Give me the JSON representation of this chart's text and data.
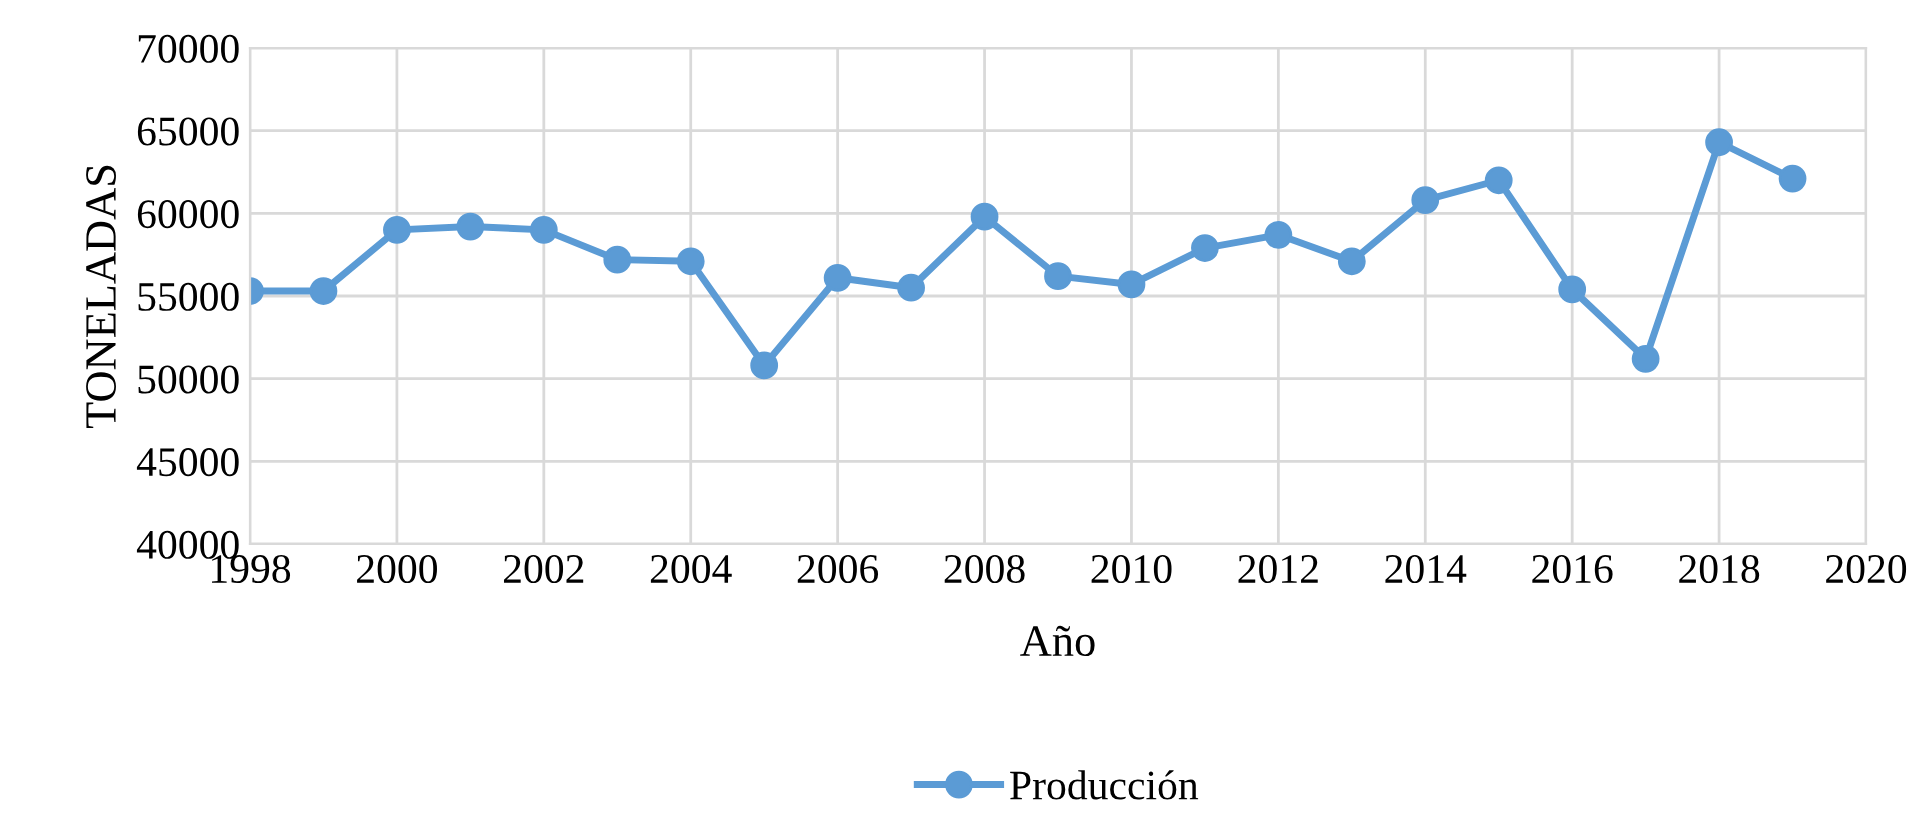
{
  "chart_data": {
    "type": "line",
    "xlabel": "Año",
    "ylabel": "TONELADAS",
    "x": [
      1998,
      1999,
      2000,
      2001,
      2002,
      2003,
      2004,
      2005,
      2006,
      2007,
      2008,
      2009,
      2010,
      2011,
      2012,
      2013,
      2014,
      2015,
      2016,
      2017,
      2018,
      2019
    ],
    "series": [
      {
        "name": "Producción",
        "color": "#5b9bd5",
        "values": [
          55300,
          55300,
          59000,
          59200,
          59000,
          57200,
          57100,
          50800,
          56100,
          55500,
          59800,
          56200,
          55700,
          57900,
          58700,
          57100,
          60800,
          62000,
          55400,
          51200,
          64300,
          62100
        ]
      }
    ],
    "xlim": [
      1998,
      2020
    ],
    "xticks": [
      1998,
      2000,
      2002,
      2004,
      2006,
      2008,
      2010,
      2012,
      2014,
      2016,
      2018,
      2020
    ],
    "ylim": [
      40000,
      70000
    ],
    "yticks": [
      40000,
      45000,
      50000,
      55000,
      60000,
      65000,
      70000
    ],
    "grid": true,
    "legend": "bottom",
    "marker": "circle",
    "line_style": "solid"
  }
}
